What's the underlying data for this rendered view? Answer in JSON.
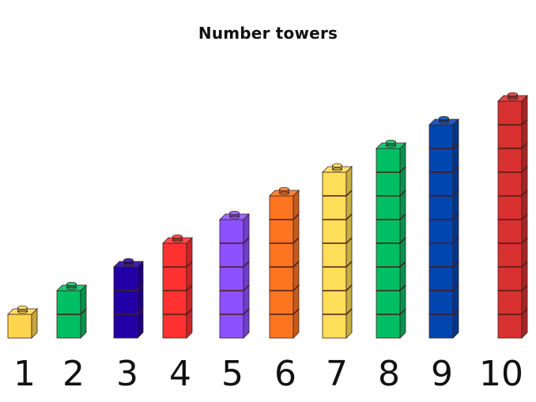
{
  "title": "Number towers",
  "towers": [
    {
      "label": "1",
      "cubes": 1,
      "color": "#FFD54F"
    },
    {
      "label": "2",
      "cubes": 2,
      "color": "#00BF63"
    },
    {
      "label": "3",
      "cubes": 3,
      "color": "#2100A8"
    },
    {
      "label": "4",
      "cubes": 4,
      "color": "#FF3131"
    },
    {
      "label": "5",
      "cubes": 5,
      "color": "#8C52FF"
    },
    {
      "label": "6",
      "cubes": 6,
      "color": "#FF751F"
    },
    {
      "label": "7",
      "cubes": 7,
      "color": "#FFDE59"
    },
    {
      "label": "8",
      "cubes": 8,
      "color": "#00BF63"
    },
    {
      "label": "9",
      "cubes": 9,
      "color": "#0046AF"
    },
    {
      "label": "10",
      "cubes": 10,
      "color": "#D93030"
    }
  ]
}
